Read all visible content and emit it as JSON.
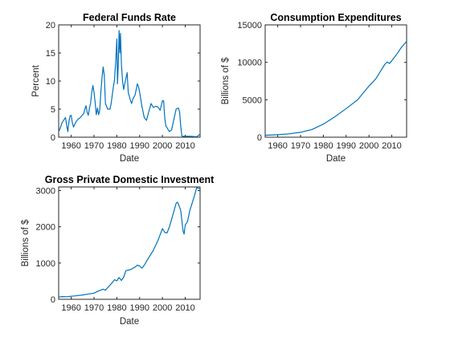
{
  "colors": {
    "line": "#0072BD",
    "axis": "#262626",
    "background": "#ffffff"
  },
  "chart_data": [
    {
      "type": "line",
      "title": "Federal Funds Rate",
      "xlabel": "Date",
      "ylabel": "Percent",
      "xlim": [
        1954.5,
        2016.5
      ],
      "ylim": [
        0,
        20
      ],
      "xticks": [
        1960,
        1970,
        1980,
        1990,
        2000,
        2010
      ],
      "yticks": [
        0,
        5,
        10,
        15,
        20
      ],
      "grid": false,
      "series": [
        {
          "x": [
            1954.5,
            1955,
            1955.5,
            1956,
            1957,
            1957.5,
            1958,
            1958.5,
            1959,
            1959.5,
            1960,
            1960.5,
            1961,
            1962,
            1963,
            1964,
            1965,
            1965.5,
            1966,
            1966.5,
            1967,
            1967.5,
            1968,
            1968.5,
            1969,
            1969.5,
            1970,
            1970.5,
            1971,
            1971.5,
            1972,
            1972.5,
            1973,
            1973.5,
            1974,
            1974.5,
            1975,
            1975.5,
            1976,
            1977,
            1977.5,
            1978,
            1978.5,
            1979,
            1979.5,
            1980,
            1980.3,
            1980.6,
            1981,
            1981.3,
            1981.6,
            1982,
            1982.5,
            1983,
            1984,
            1984.5,
            1985,
            1986,
            1986.5,
            1987,
            1988,
            1989,
            1989.5,
            1990,
            1991,
            1992,
            1993,
            1994,
            1995,
            1996,
            1997,
            1998,
            1999,
            2000,
            2000.5,
            2001,
            2001.5,
            2002,
            2003,
            2004,
            2005,
            2006,
            2007,
            2007.5,
            2008,
            2008.5,
            2009,
            2010,
            2012,
            2015,
            2015.5,
            2016,
            2016.5
          ],
          "y": [
            1.0,
            1.4,
            2.0,
            2.6,
            3.2,
            3.5,
            2.2,
            1.0,
            2.8,
            3.8,
            3.9,
            2.6,
            1.8,
            2.7,
            3.2,
            3.5,
            4.0,
            4.2,
            5.0,
            5.6,
            4.4,
            3.9,
            5.2,
            6.0,
            8.0,
            9.2,
            8.0,
            6.2,
            4.0,
            5.2,
            4.0,
            4.8,
            8.0,
            10.5,
            12.5,
            11.0,
            6.0,
            5.5,
            5.0,
            5.0,
            6.0,
            7.5,
            9.0,
            10.2,
            13.5,
            17.5,
            9.5,
            12.5,
            19.0,
            15.0,
            18.5,
            13.0,
            10.0,
            8.5,
            10.5,
            11.5,
            8.0,
            6.5,
            6.0,
            6.8,
            7.5,
            9.5,
            9.0,
            8.0,
            5.5,
            3.5,
            3.0,
            4.5,
            6.0,
            5.3,
            5.5,
            5.4,
            4.8,
            6.5,
            6.5,
            3.5,
            2.0,
            1.7,
            1.0,
            1.3,
            3.2,
            5.0,
            5.2,
            4.5,
            2.0,
            0.2,
            0.15,
            0.17,
            0.15,
            0.1,
            0.2,
            0.4,
            0.5
          ]
        }
      ]
    },
    {
      "type": "line",
      "title": "Consumption Expenditures",
      "xlabel": "Date",
      "ylabel": "Billions of $",
      "xlim": [
        1954.5,
        2016.5
      ],
      "ylim": [
        0,
        15000
      ],
      "xticks": [
        1960,
        1970,
        1980,
        1990,
        2000,
        2010
      ],
      "yticks": [
        0,
        5000,
        10000,
        15000
      ],
      "grid": false,
      "series": [
        {
          "x": [
            1954.5,
            1958,
            1960,
            1965,
            1970,
            1975,
            1980,
            1985,
            1990,
            1995,
            2000,
            2003,
            2005,
            2007,
            2008,
            2009,
            2010,
            2012,
            2014,
            2016.5
          ],
          "y": [
            255,
            310,
            330,
            450,
            650,
            1030,
            1750,
            2720,
            3830,
            4990,
            6830,
            7800,
            8800,
            9750,
            10050,
            9850,
            10200,
            11000,
            11900,
            12800
          ]
        }
      ]
    },
    {
      "type": "line",
      "title": "Gross Private Domestic Investment",
      "xlabel": "Date",
      "ylabel": "Billions of $",
      "xlim": [
        1954.5,
        2016.5
      ],
      "ylim": [
        0,
        3100
      ],
      "xticks": [
        1960,
        1970,
        1980,
        1990,
        2000,
        2010
      ],
      "yticks": [
        0,
        1000,
        2000,
        3000
      ],
      "grid": false,
      "series": [
        {
          "x": [
            1954.5,
            1956,
            1958,
            1960,
            1962,
            1965,
            1968,
            1970,
            1972,
            1974,
            1975,
            1976,
            1978,
            1979,
            1980,
            1981,
            1982,
            1983,
            1984,
            1986,
            1988,
            1989,
            1990,
            1991,
            1992,
            1994,
            1996,
            1998,
            2000,
            2001,
            2002,
            2003,
            2004,
            2006,
            2006.5,
            2007,
            2008,
            2009,
            2009.5,
            2010,
            2011,
            2012,
            2014,
            2015,
            2016.5
          ],
          "y": [
            60,
            75,
            70,
            85,
            95,
            120,
            150,
            170,
            230,
            280,
            250,
            320,
            460,
            540,
            510,
            600,
            520,
            610,
            790,
            820,
            890,
            940,
            920,
            860,
            940,
            1150,
            1350,
            1620,
            1950,
            1850,
            1830,
            1990,
            2200,
            2650,
            2680,
            2630,
            2450,
            1900,
            1800,
            2050,
            2150,
            2450,
            2850,
            3080,
            3050
          ]
        }
      ]
    }
  ]
}
